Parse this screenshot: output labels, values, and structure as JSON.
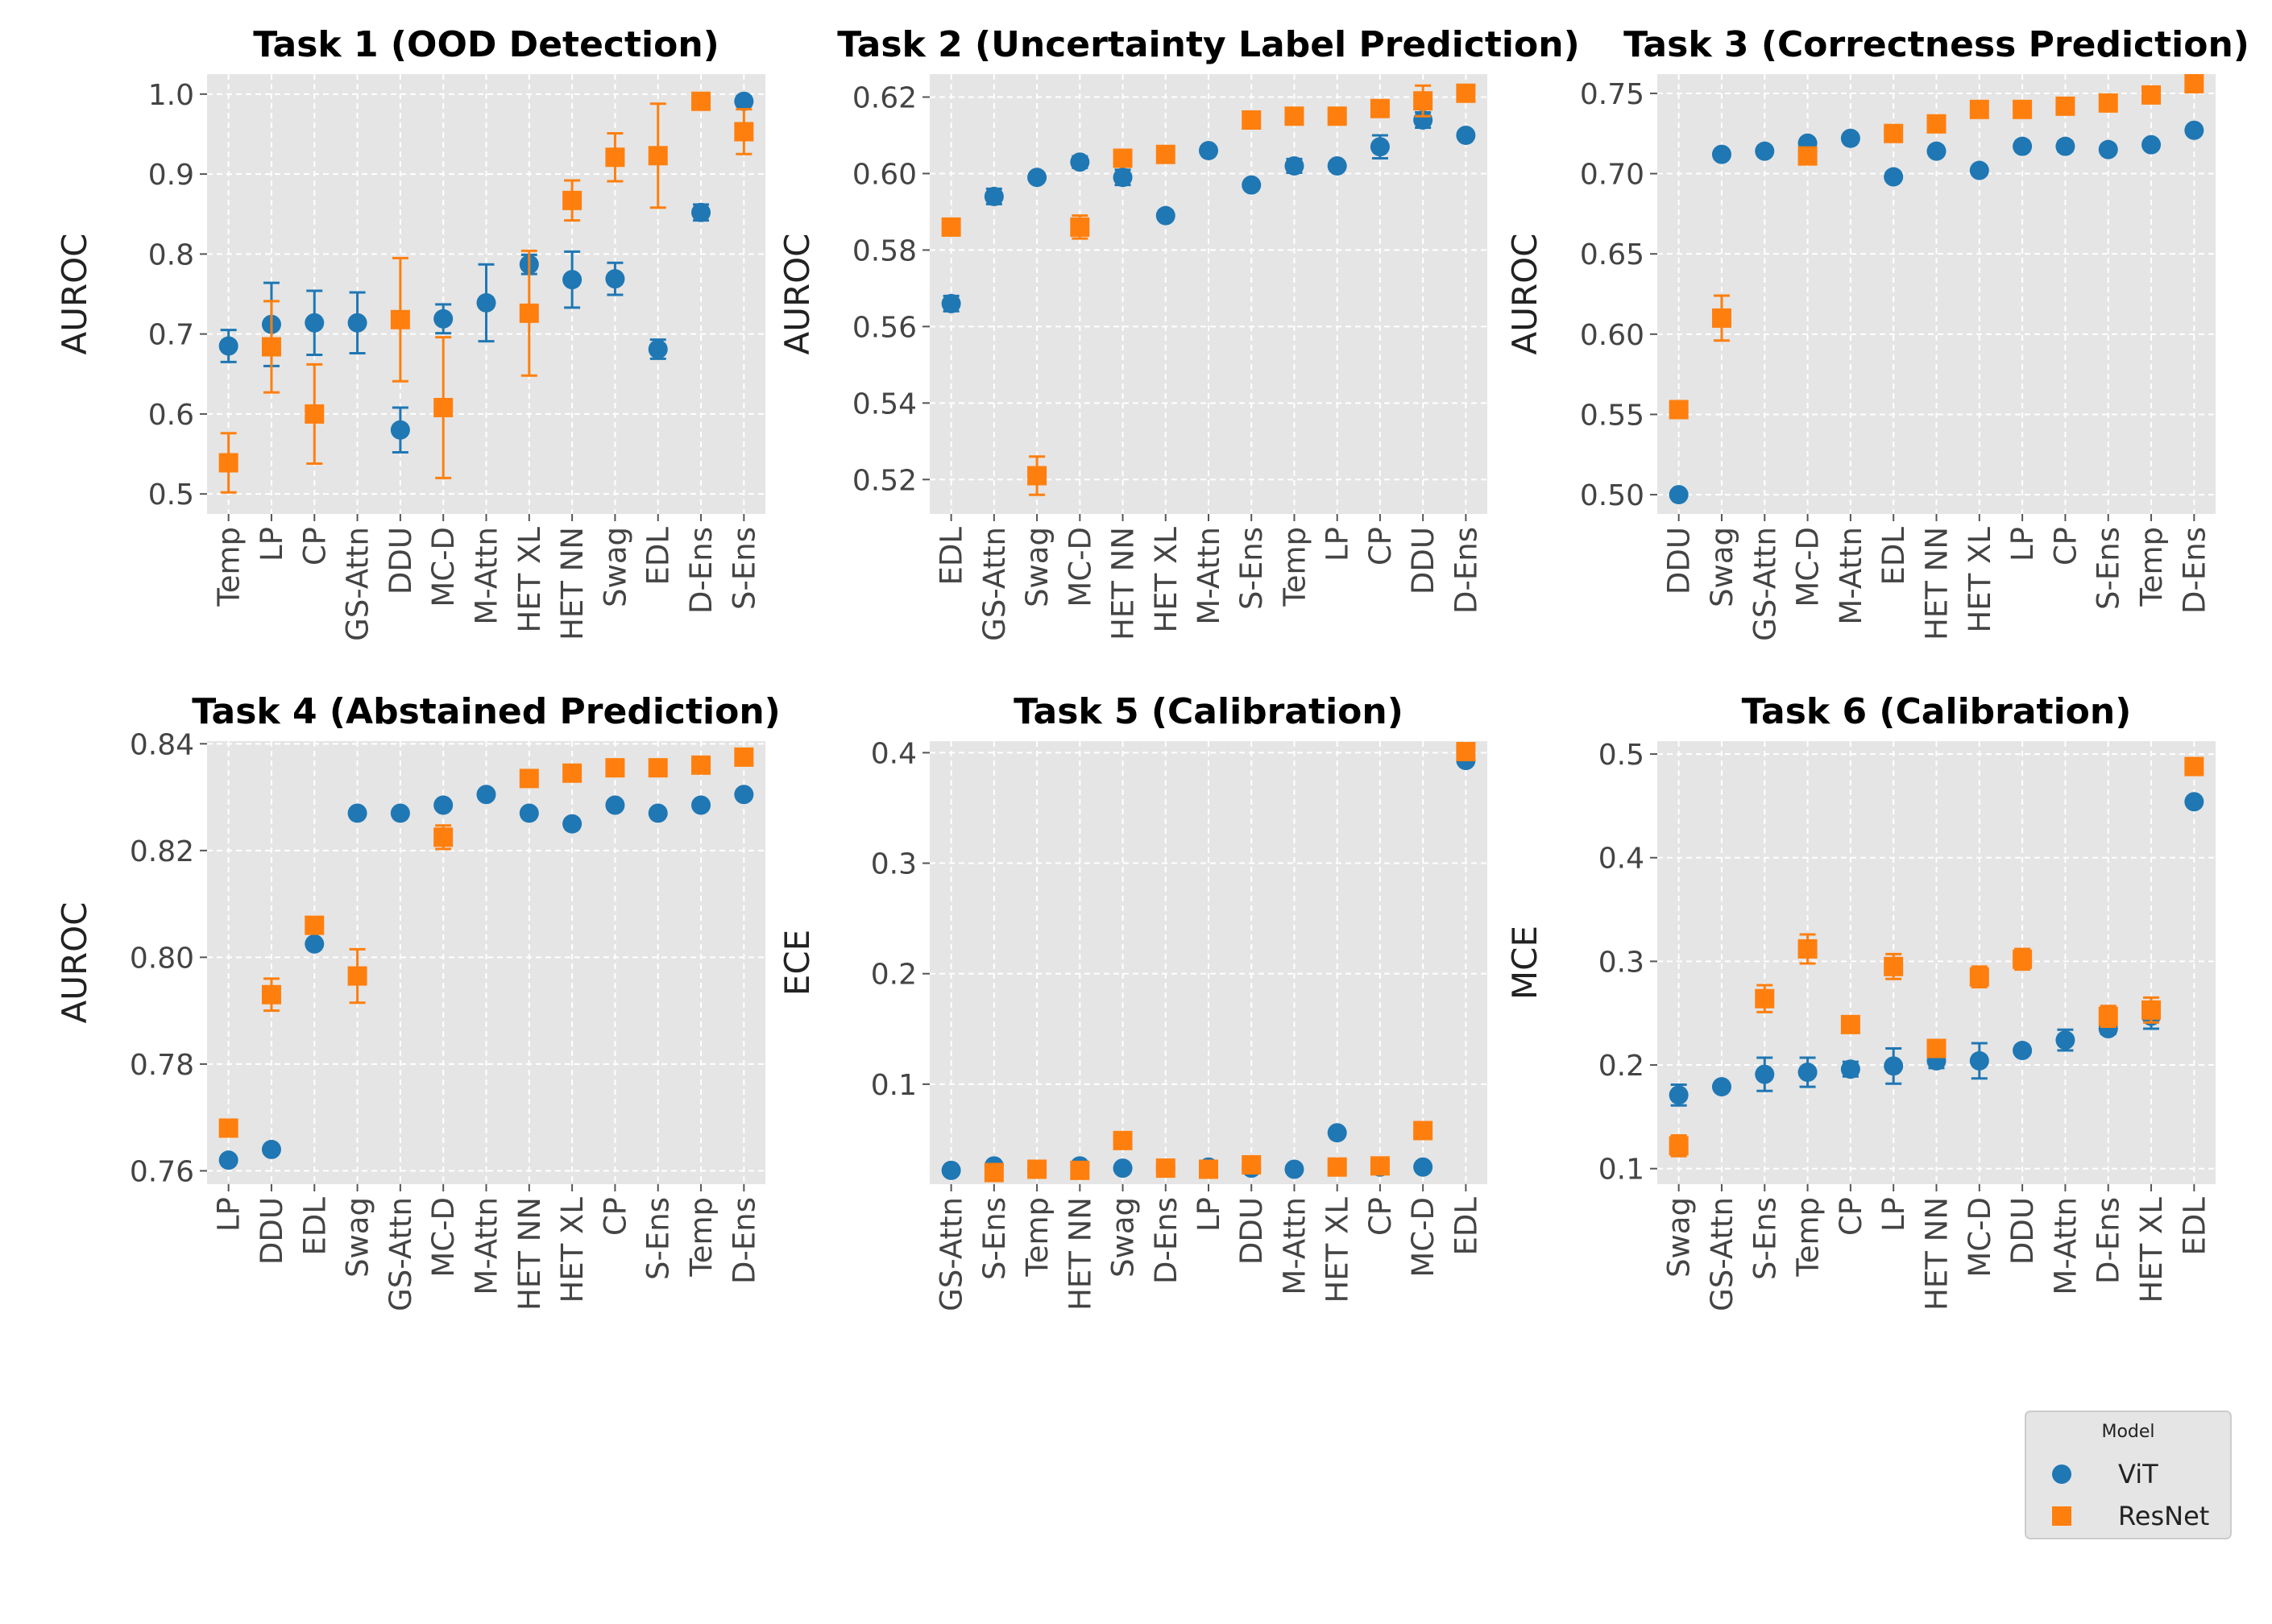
{
  "colors": {
    "vit": "#1f77b4",
    "resnet": "#ff7f0e",
    "panel_bg": "#e5e5e5",
    "grid": "#ffffff"
  },
  "legend": {
    "title": "Model",
    "entries": [
      {
        "name": "ViT",
        "marker": "circle",
        "color": "#1f77b4"
      },
      {
        "name": "ResNet",
        "marker": "square",
        "color": "#ff7f0e"
      }
    ]
  },
  "chart_data": [
    {
      "type": "scatter",
      "title": "Task 1 (OOD Detection)",
      "ylabel": "AUROC",
      "ylim": [
        0.475,
        1.025
      ],
      "yticks": [
        "0.5",
        "0.6",
        "0.7",
        "0.8",
        "0.9",
        "1.0"
      ],
      "categories": [
        "Temp",
        "LP",
        "CP",
        "GS-Attn",
        "DDU",
        "MC-D",
        "M-Attn",
        "HET XL",
        "HET NN",
        "Swag",
        "EDL",
        "D-Ens",
        "S-Ens"
      ],
      "series": [
        {
          "name": "ViT",
          "values": [
            0.685,
            0.712,
            0.714,
            0.714,
            0.58,
            0.719,
            0.739,
            0.787,
            0.768,
            0.769,
            0.681,
            0.852,
            0.991
          ],
          "errors": [
            0.02,
            0.052,
            0.04,
            0.038,
            0.028,
            0.018,
            0.048,
            0.012,
            0.035,
            0.02,
            0.012,
            0.01,
            0.006
          ]
        },
        {
          "name": "ResNet",
          "values": [
            0.539,
            0.684,
            0.6,
            null,
            0.718,
            0.608,
            null,
            0.726,
            0.867,
            0.921,
            0.923,
            0.991,
            0.953
          ],
          "errors": [
            0.037,
            0.057,
            0.062,
            null,
            0.077,
            0.088,
            null,
            0.078,
            0.025,
            0.03,
            0.065,
            0.005,
            0.028
          ]
        }
      ]
    },
    {
      "type": "scatter",
      "title": "Task 2 (Uncertainty Label Prediction)",
      "ylabel": "AUROC",
      "ylim": [
        0.511,
        0.626
      ],
      "yticks": [
        "0.52",
        "0.54",
        "0.56",
        "0.58",
        "0.60",
        "0.62"
      ],
      "categories": [
        "EDL",
        "GS-Attn",
        "Swag",
        "MC-D",
        "HET NN",
        "HET XL",
        "M-Attn",
        "S-Ens",
        "Temp",
        "LP",
        "CP",
        "DDU",
        "D-Ens"
      ],
      "series": [
        {
          "name": "ViT",
          "values": [
            0.566,
            0.594,
            0.599,
            0.603,
            0.599,
            0.589,
            0.606,
            0.597,
            0.602,
            0.602,
            0.607,
            0.614,
            0.61
          ],
          "errors": [
            0.002,
            0.002,
            0.001,
            0.0015,
            0.002,
            0.001,
            0.001,
            0.001,
            0.0018,
            0.001,
            0.003,
            0.002,
            0.001
          ]
        },
        {
          "name": "ResNet",
          "values": [
            0.586,
            null,
            0.521,
            0.586,
            0.604,
            0.605,
            null,
            0.614,
            0.615,
            0.615,
            0.617,
            0.619,
            0.621
          ],
          "errors": [
            0.001,
            null,
            0.005,
            0.003,
            0.001,
            0.001,
            null,
            0.001,
            0.001,
            0.001,
            0.001,
            0.004,
            0.001
          ]
        }
      ]
    },
    {
      "type": "scatter",
      "title": "Task 3 (Correctness Prediction)",
      "ylabel": "AUROC",
      "ylim": [
        0.488,
        0.762
      ],
      "yticks": [
        "0.50",
        "0.55",
        "0.60",
        "0.65",
        "0.70",
        "0.75"
      ],
      "categories": [
        "DDU",
        "Swag",
        "GS-Attn",
        "MC-D",
        "M-Attn",
        "EDL",
        "HET NN",
        "HET XL",
        "LP",
        "CP",
        "S-Ens",
        "Temp",
        "D-Ens"
      ],
      "series": [
        {
          "name": "ViT",
          "values": [
            0.5,
            0.712,
            0.714,
            0.719,
            0.722,
            0.698,
            0.714,
            0.702,
            0.717,
            0.717,
            0.715,
            0.718,
            0.727
          ],
          "errors": [
            0.001,
            0.001,
            0.001,
            0.001,
            0.001,
            0.001,
            0.001,
            0.001,
            0.001,
            0.003,
            0.001,
            0.001,
            0.001
          ]
        },
        {
          "name": "ResNet",
          "values": [
            0.553,
            0.61,
            null,
            0.711,
            null,
            0.725,
            0.731,
            0.74,
            0.74,
            0.742,
            0.744,
            0.749,
            0.756
          ],
          "errors": [
            0.003,
            0.014,
            null,
            0.001,
            null,
            0.001,
            0.001,
            0.001,
            0.001,
            0.001,
            0.001,
            0.001,
            0.001
          ]
        }
      ]
    },
    {
      "type": "scatter",
      "title": "Task 4 (Abstained Prediction)",
      "ylabel": "AUROC",
      "ylim": [
        0.7575,
        0.8405
      ],
      "yticks": [
        "0.76",
        "0.78",
        "0.80",
        "0.82",
        "0.84"
      ],
      "categories": [
        "LP",
        "DDU",
        "EDL",
        "Swag",
        "GS-Attn",
        "MC-D",
        "M-Attn",
        "HET NN",
        "HET XL",
        "CP",
        "S-Ens",
        "Temp",
        "D-Ens"
      ],
      "series": [
        {
          "name": "ViT",
          "values": [
            0.762,
            0.764,
            0.8025,
            0.827,
            0.827,
            0.8285,
            0.8305,
            0.827,
            0.825,
            0.8285,
            0.827,
            0.8285,
            0.8305
          ],
          "errors": [
            0.0003,
            0.0003,
            0.0003,
            0.0003,
            0.0003,
            0.0003,
            0.0003,
            0.0003,
            0.0003,
            0.0003,
            0.0003,
            0.0003,
            0.0003
          ]
        },
        {
          "name": "ResNet",
          "values": [
            0.768,
            0.793,
            0.806,
            0.7965,
            null,
            0.8225,
            null,
            0.8335,
            0.8345,
            0.8355,
            0.8355,
            0.836,
            0.8375
          ],
          "errors": [
            0.0005,
            0.003,
            0.0005,
            0.005,
            null,
            0.0022,
            null,
            0.0005,
            0.0005,
            0.0005,
            0.0005,
            0.0005,
            0.0005
          ]
        }
      ]
    },
    {
      "type": "scatter",
      "title": "Task 5 (Calibration)",
      "ylabel": "ECE",
      "ylim": [
        0.0095,
        0.4105
      ],
      "yticks": [
        "0.1",
        "0.2",
        "0.3",
        "0.4"
      ],
      "categories": [
        "GS-Attn",
        "S-Ens",
        "Temp",
        "HET NN",
        "Swag",
        "D-Ens",
        "LP",
        "DDU",
        "M-Attn",
        "HET XL",
        "CP",
        "MC-D",
        "EDL"
      ],
      "series": [
        {
          "name": "ViT",
          "values": [
            0.022,
            0.026,
            0.023,
            0.026,
            0.024,
            0.024,
            0.025,
            0.024,
            0.023,
            0.056,
            0.025,
            0.025,
            0.393
          ],
          "errors": [
            0.001,
            0.001,
            0.001,
            0.001,
            0.001,
            0.001,
            0.001,
            0.001,
            0.001,
            0.001,
            0.001,
            0.001,
            0.001
          ]
        },
        {
          "name": "ResNet",
          "values": [
            null,
            0.02,
            0.023,
            0.022,
            0.049,
            0.024,
            0.023,
            0.027,
            null,
            0.025,
            0.026,
            0.058,
            0.401
          ],
          "errors": [
            null,
            0.001,
            0.001,
            0.001,
            0.001,
            0.001,
            0.001,
            0.001,
            null,
            0.001,
            0.001,
            0.001,
            0.001
          ]
        }
      ]
    },
    {
      "type": "scatter",
      "title": "Task 6 (Calibration)",
      "ylabel": "MCE",
      "ylim": [
        0.085,
        0.5125
      ],
      "yticks": [
        "0.1",
        "0.2",
        "0.3",
        "0.4",
        "0.5"
      ],
      "categories": [
        "Swag",
        "GS-Attn",
        "S-Ens",
        "Temp",
        "CP",
        "LP",
        "HET NN",
        "MC-D",
        "DDU",
        "M-Attn",
        "D-Ens",
        "HET XL",
        "EDL"
      ],
      "series": [
        {
          "name": "ViT",
          "values": [
            0.171,
            0.179,
            0.191,
            0.193,
            0.196,
            0.199,
            0.204,
            0.204,
            0.214,
            0.224,
            0.235,
            0.247,
            0.454
          ],
          "errors": [
            0.01,
            0.001,
            0.016,
            0.014,
            0.007,
            0.017,
            0.007,
            0.017,
            0.001,
            0.01,
            0.005,
            0.012,
            0.001
          ]
        },
        {
          "name": "ResNet",
          "values": [
            0.122,
            null,
            0.264,
            0.312,
            0.239,
            0.295,
            0.216,
            0.285,
            0.302,
            null,
            0.247,
            0.253,
            0.488
          ],
          "errors": [
            0.01,
            null,
            0.013,
            0.014,
            0.001,
            0.012,
            0.004,
            0.01,
            0.01,
            null,
            0.01,
            0.012,
            0.001
          ]
        }
      ]
    }
  ]
}
